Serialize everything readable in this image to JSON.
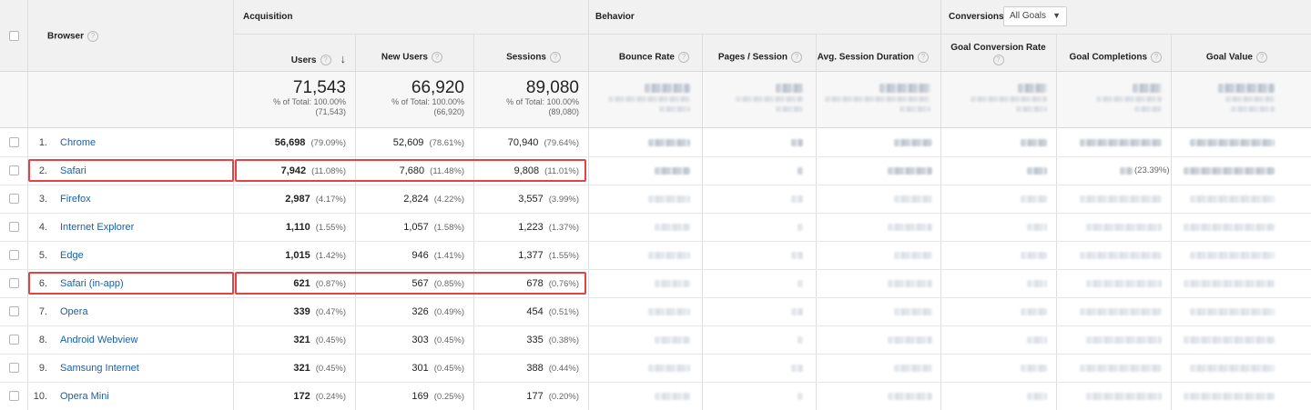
{
  "header": {
    "browser_label": "Browser",
    "acquisition": "Acquisition",
    "behavior": "Behavior",
    "conversions": "Conversions",
    "goals_selected": "All Goals",
    "columns": {
      "users": "Users",
      "new_users": "New Users",
      "sessions": "Sessions",
      "bounce_rate": "Bounce Rate",
      "pages_session": "Pages / Session",
      "avg_session": "Avg. Session Duration",
      "goal_conv_rate": "Goal Conversion Rate",
      "goal_completions": "Goal Completions",
      "goal_value": "Goal Value"
    }
  },
  "totals": {
    "users": {
      "value": "71,543",
      "pct": "% of Total: 100.00%",
      "abs": "(71,543)"
    },
    "new_users": {
      "value": "66,920",
      "pct": "% of Total: 100.00%",
      "abs": "(66,920)"
    },
    "sessions": {
      "value": "89,080",
      "pct": "% of Total: 100.00%",
      "abs": "(89,080)"
    }
  },
  "rows": [
    {
      "num": "1.",
      "browser": "Chrome",
      "users": "56,698",
      "users_pct": "(79.09%)",
      "new_users": "52,609",
      "new_users_pct": "(78.61%)",
      "sessions": "70,940",
      "sessions_pct": "(79.64%)"
    },
    {
      "num": "2.",
      "browser": "Safari",
      "users": "7,942",
      "users_pct": "(11.08%)",
      "new_users": "7,680",
      "new_users_pct": "(11.48%)",
      "sessions": "9,808",
      "sessions_pct": "(11.01%)",
      "goal_completions_pct": "(23.39%)"
    },
    {
      "num": "3.",
      "browser": "Firefox",
      "users": "2,987",
      "users_pct": "(4.17%)",
      "new_users": "2,824",
      "new_users_pct": "(4.22%)",
      "sessions": "3,557",
      "sessions_pct": "(3.99%)"
    },
    {
      "num": "4.",
      "browser": "Internet Explorer",
      "users": "1,110",
      "users_pct": "(1.55%)",
      "new_users": "1,057",
      "new_users_pct": "(1.58%)",
      "sessions": "1,223",
      "sessions_pct": "(1.37%)"
    },
    {
      "num": "5.",
      "browser": "Edge",
      "users": "1,015",
      "users_pct": "(1.42%)",
      "new_users": "946",
      "new_users_pct": "(1.41%)",
      "sessions": "1,377",
      "sessions_pct": "(1.55%)"
    },
    {
      "num": "6.",
      "browser": "Safari (in-app)",
      "users": "621",
      "users_pct": "(0.87%)",
      "new_users": "567",
      "new_users_pct": "(0.85%)",
      "sessions": "678",
      "sessions_pct": "(0.76%)"
    },
    {
      "num": "7.",
      "browser": "Opera",
      "users": "339",
      "users_pct": "(0.47%)",
      "new_users": "326",
      "new_users_pct": "(0.49%)",
      "sessions": "454",
      "sessions_pct": "(0.51%)"
    },
    {
      "num": "8.",
      "browser": "Android Webview",
      "users": "321",
      "users_pct": "(0.45%)",
      "new_users": "303",
      "new_users_pct": "(0.45%)",
      "sessions": "335",
      "sessions_pct": "(0.38%)"
    },
    {
      "num": "9.",
      "browser": "Samsung Internet",
      "users": "321",
      "users_pct": "(0.45%)",
      "new_users": "301",
      "new_users_pct": "(0.45%)",
      "sessions": "388",
      "sessions_pct": "(0.44%)"
    },
    {
      "num": "10.",
      "browser": "Opera Mini",
      "users": "172",
      "users_pct": "(0.24%)",
      "new_users": "169",
      "new_users_pct": "(0.25%)",
      "sessions": "177",
      "sessions_pct": "(0.20%)"
    }
  ],
  "colors": {
    "highlight": "#e04545",
    "link": "#1a5fa8"
  }
}
